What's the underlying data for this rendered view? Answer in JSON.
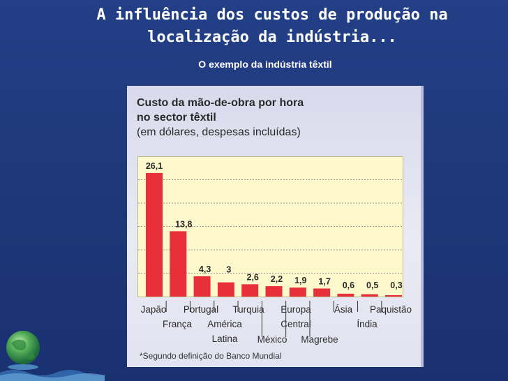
{
  "slide": {
    "title": "A influência dos custos de produção na localização da indústria...",
    "subtitle": "O exemplo da indústria têxtil"
  },
  "chart_panel": {
    "heading_line1": "Custo da mão-de-obra por hora",
    "heading_line2": "no sector têxtil",
    "heading_line3": "(em dólares, despesas incluídas)",
    "footnote": "*Segundo definição do Banco Mundial"
  },
  "colors": {
    "bar": "#e8303a",
    "plot_bg": "#fdf9cc",
    "slide_bg": "#1f3a7d"
  },
  "chart_data": {
    "type": "bar",
    "title": "Custo da mão-de-obra por hora no sector têxtil",
    "subtitle": "(em dólares, despesas incluídas)",
    "xlabel": "",
    "ylabel": "",
    "ylim": [
      0,
      28
    ],
    "grid": true,
    "categories": [
      "Japão",
      "França",
      "Portugal",
      "América Latina",
      "Turquia",
      "México",
      "Europa Central",
      "Magrebe",
      "Ásia",
      "Índia",
      "Paquistão"
    ],
    "values": [
      26.1,
      13.8,
      4.3,
      3,
      2.6,
      2.2,
      1.9,
      1.7,
      0.6,
      0.5,
      0.3
    ],
    "value_labels": [
      "26,1",
      "13,8",
      "4,3",
      "3",
      "2,6",
      "2,2",
      "1,9",
      "1,7",
      "0,6",
      "0,5",
      "0,3"
    ]
  }
}
